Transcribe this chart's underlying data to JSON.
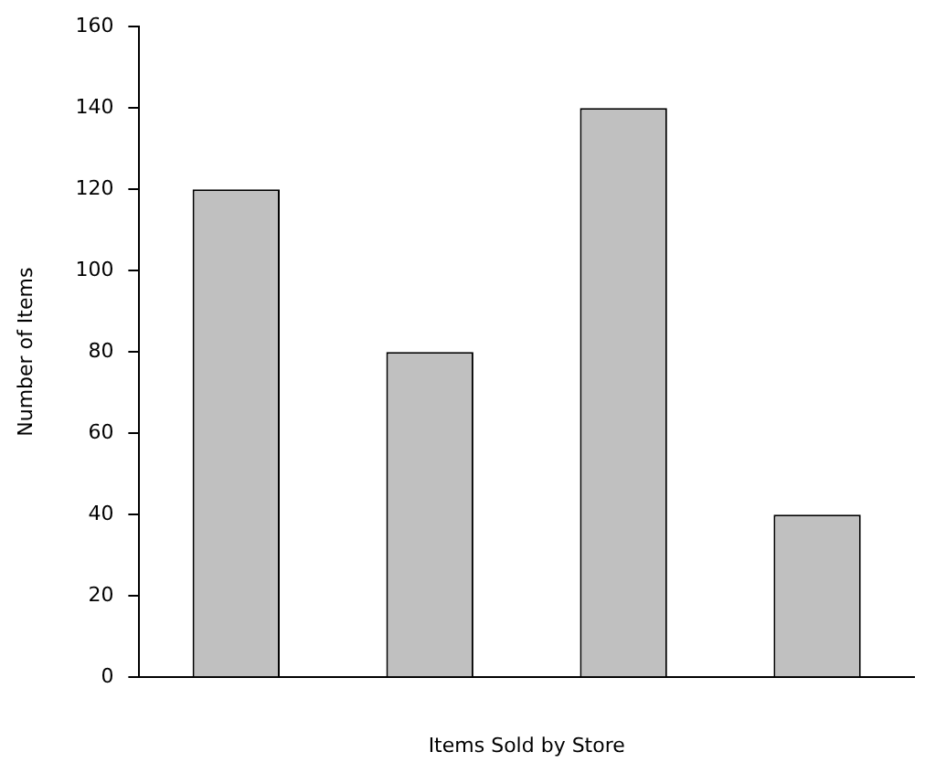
{
  "chart_data": {
    "type": "bar",
    "xlabel": "Items Sold by Store",
    "ylabel": "Number of Items",
    "categories": [
      null,
      null,
      null,
      null
    ],
    "values": [
      120,
      80,
      140,
      40
    ],
    "color": "#c0c0c0",
    "ylim": [
      0,
      160
    ],
    "yticks": [
      0,
      20,
      40,
      60,
      80,
      100,
      120,
      140,
      160
    ]
  }
}
